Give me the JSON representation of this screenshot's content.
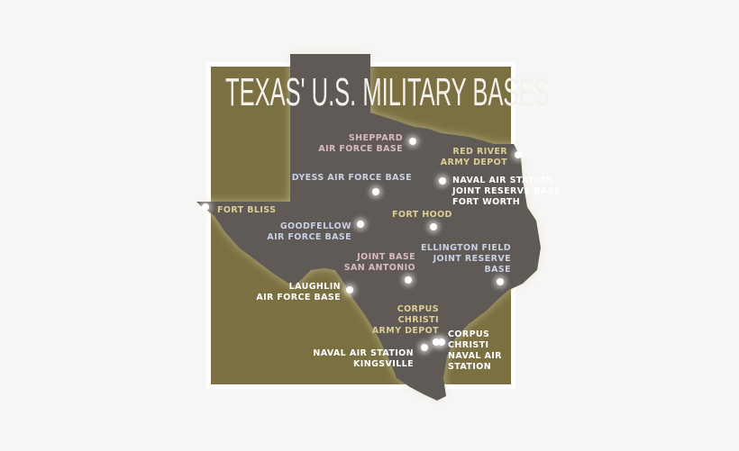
{
  "title": "TEXAS' U.S. MILITARY BASES",
  "colors": {
    "background": "#f6f6f6",
    "panel": "#7b7042",
    "state": "#5f5a55",
    "pink": "#d9b8c4",
    "blue": "#c8d0e4",
    "tan": "#dccd94",
    "white": "#ffffff"
  },
  "bases": [
    {
      "id": "sheppard",
      "lines": [
        "SHEPPARD",
        "AIR FORCE BASE"
      ],
      "color": "pink"
    },
    {
      "id": "red-river",
      "lines": [
        "RED RIVER",
        "ARMY DEPOT"
      ],
      "color": "tan"
    },
    {
      "id": "nas-fort-worth",
      "lines": [
        "NAVAL AIR STATION",
        "JOINT RESERVE BASE",
        "FORT WORTH"
      ],
      "color": "white"
    },
    {
      "id": "dyess",
      "lines": [
        "DYESS AIR FORCE BASE"
      ],
      "color": "blue"
    },
    {
      "id": "fort-bliss",
      "lines": [
        "FORT BLISS"
      ],
      "color": "tan"
    },
    {
      "id": "goodfellow",
      "lines": [
        "GOODFELLOW",
        "AIR FORCE BASE"
      ],
      "color": "blue"
    },
    {
      "id": "fort-hood",
      "lines": [
        "FORT HOOD"
      ],
      "color": "tan"
    },
    {
      "id": "jbsa",
      "lines": [
        "JOINT BASE",
        "SAN ANTONIO"
      ],
      "color": "pink"
    },
    {
      "id": "ellington",
      "lines": [
        "ELLINGTON FIELD",
        "JOINT RESERVE",
        "BASE"
      ],
      "color": "blue"
    },
    {
      "id": "laughlin",
      "lines": [
        "LAUGHLIN",
        "AIR FORCE BASE"
      ],
      "color": "white"
    },
    {
      "id": "ccad",
      "lines": [
        "CORPUS",
        "CHRISTI",
        "ARMY DEPOT"
      ],
      "color": "tan"
    },
    {
      "id": "kingsville",
      "lines": [
        "NAVAL AIR STATION",
        "KINGSVILLE"
      ],
      "color": "white"
    },
    {
      "id": "ccnas",
      "lines": [
        "CORPUS",
        "CHRISTI",
        "NAVAL AIR",
        "STATION"
      ],
      "color": "white"
    }
  ]
}
